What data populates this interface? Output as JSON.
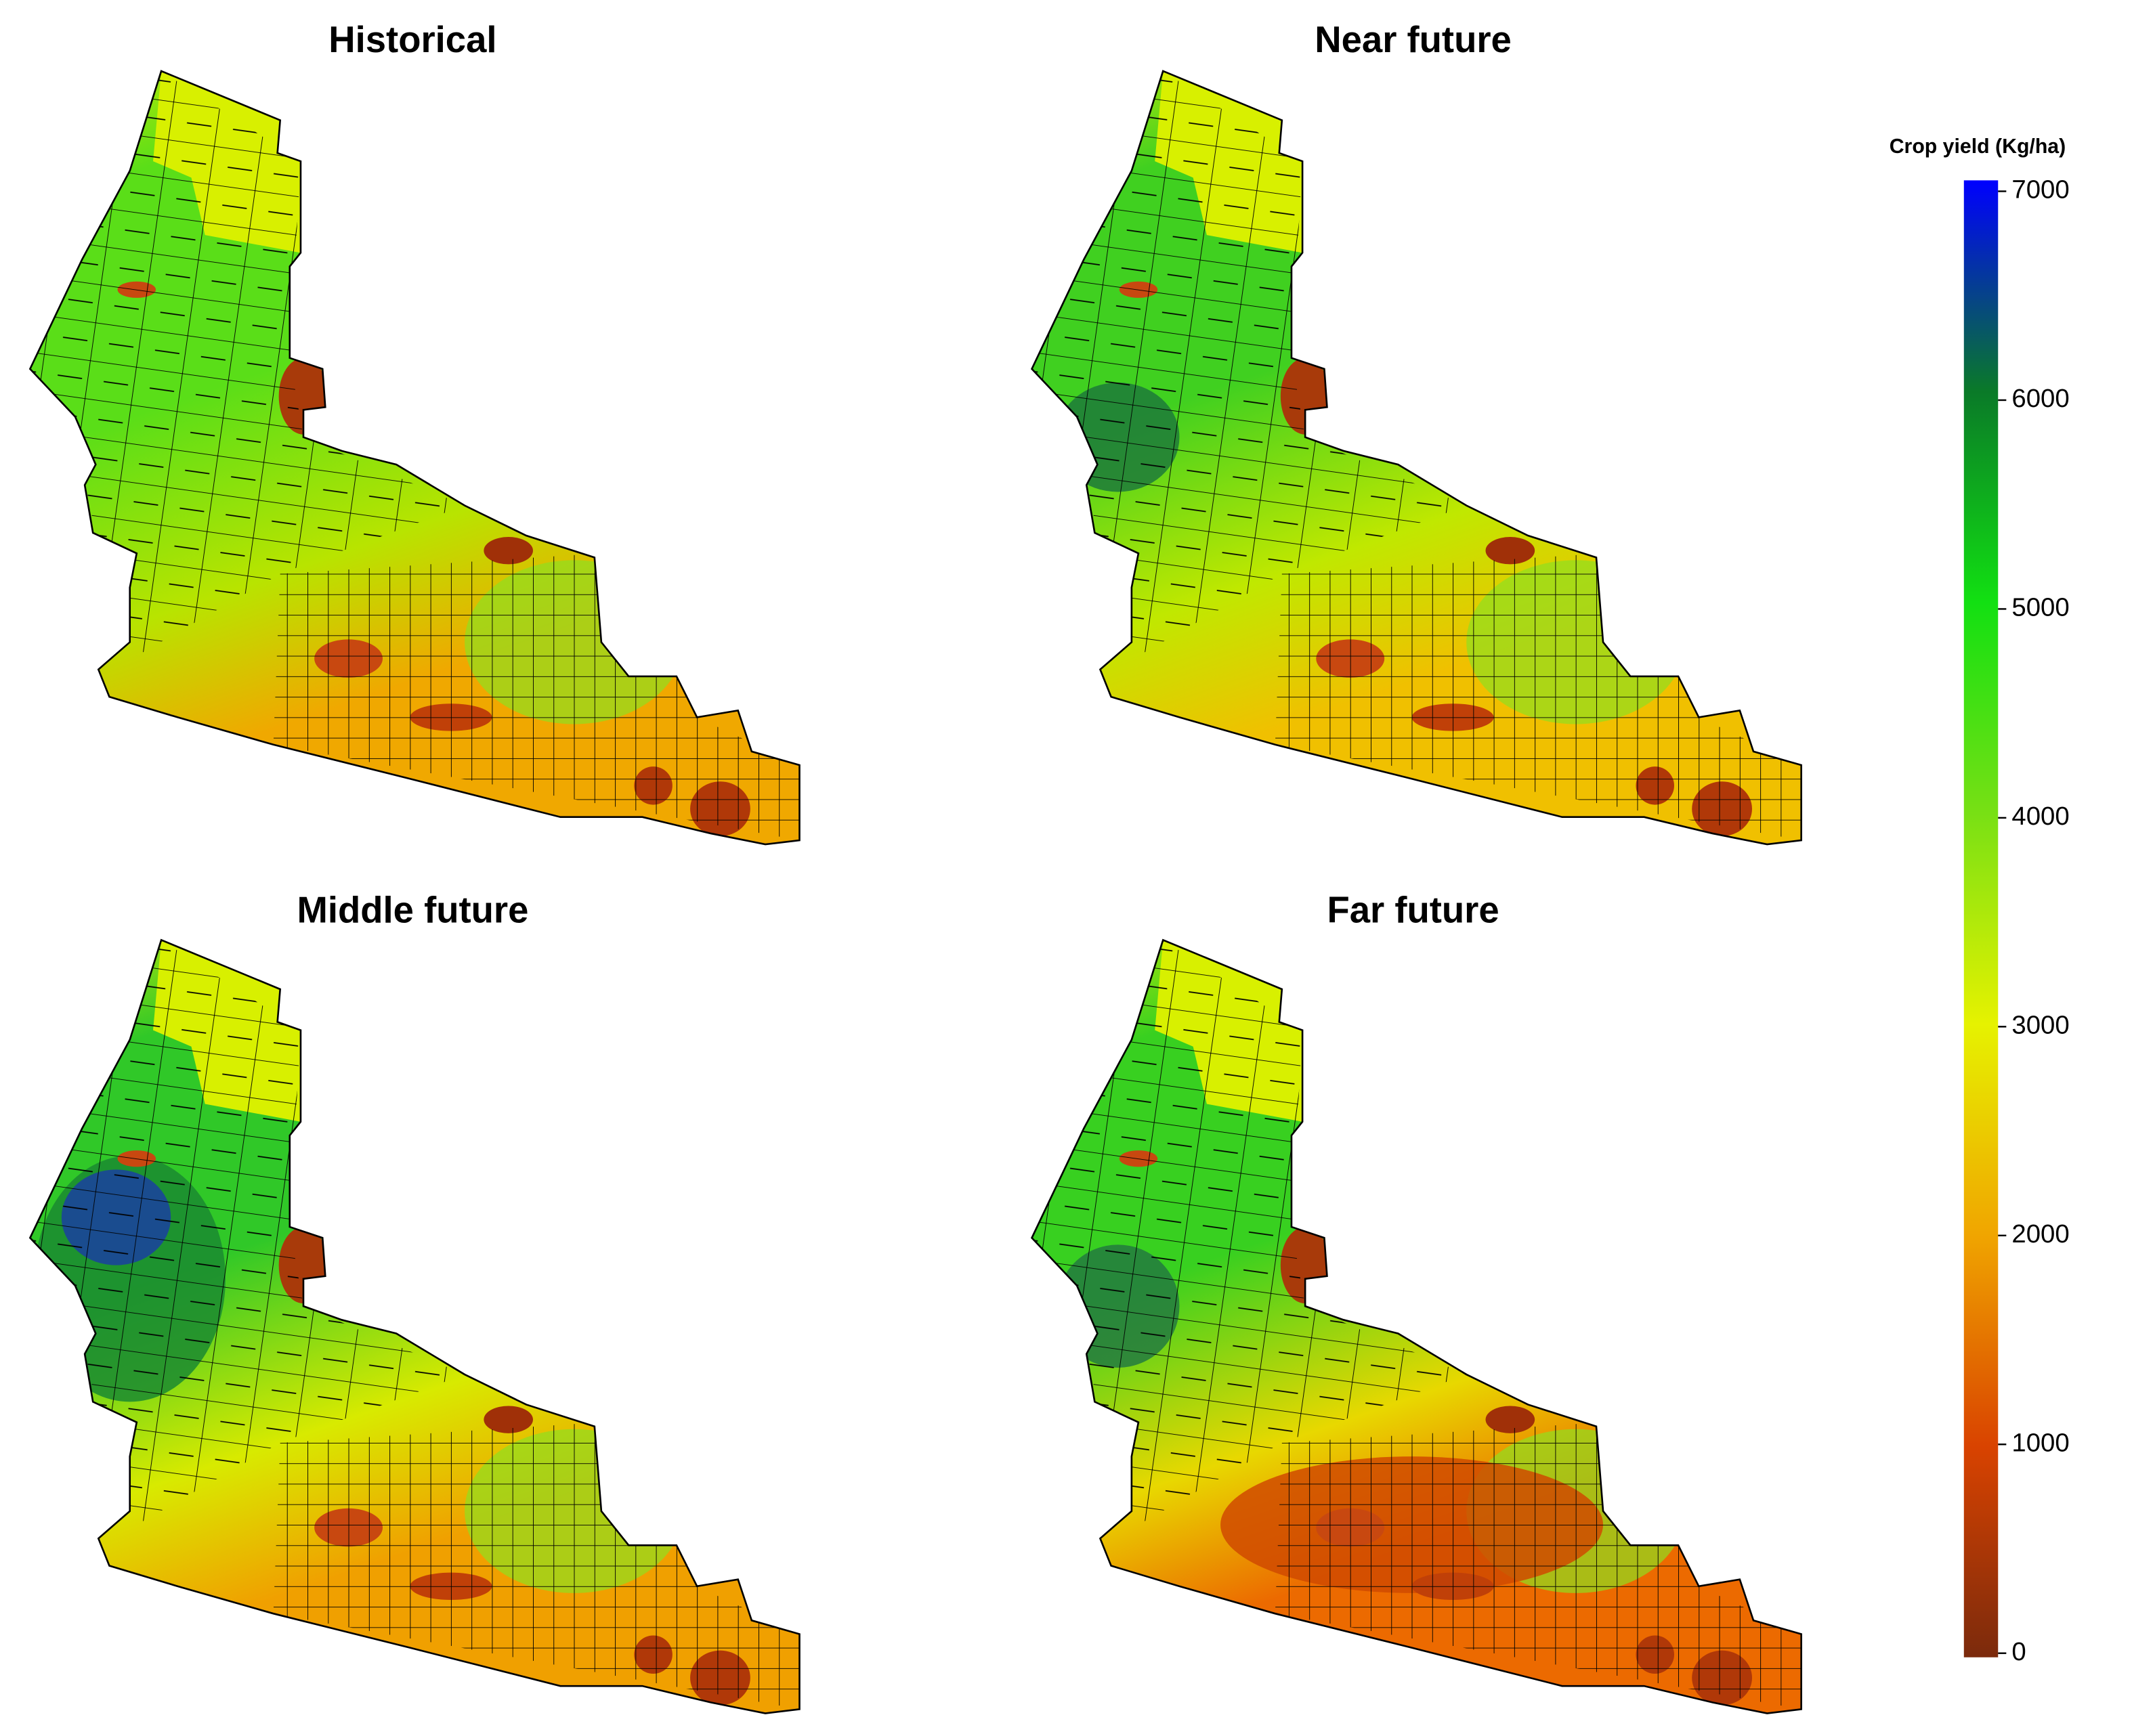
{
  "panels": [
    {
      "title": "Historical"
    },
    {
      "title": "Near future"
    },
    {
      "title": "Middle future"
    },
    {
      "title": "Far future"
    }
  ],
  "colorbar": {
    "title": "Crop yield (Kg/ha)",
    "lim": [
      0,
      7000
    ],
    "ticks": [
      0,
      1000,
      2000,
      3000,
      4000,
      5000,
      6000,
      7000
    ],
    "colors": [
      "#7b2a0c",
      "#d94300",
      "#f0a500",
      "#e6f200",
      "#78e014",
      "#12e012",
      "#0a7a28",
      "#0000ff"
    ]
  }
}
